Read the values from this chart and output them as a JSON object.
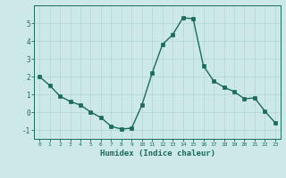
{
  "x": [
    0,
    1,
    2,
    3,
    4,
    5,
    6,
    7,
    8,
    9,
    10,
    11,
    12,
    13,
    14,
    15,
    16,
    17,
    18,
    19,
    20,
    21,
    22,
    23
  ],
  "y": [
    2.0,
    1.5,
    0.9,
    0.6,
    0.4,
    0.0,
    -0.3,
    -0.8,
    -0.95,
    -0.9,
    0.4,
    2.2,
    3.8,
    4.35,
    5.3,
    5.25,
    2.6,
    1.75,
    1.4,
    1.15,
    0.75,
    0.8,
    0.05,
    -0.6
  ],
  "title": "",
  "xlabel": "Humidex (Indice chaleur)",
  "ylabel": "",
  "xlim": [
    -0.5,
    23.5
  ],
  "ylim": [
    -1.5,
    6.0
  ],
  "yticks": [
    -1,
    0,
    1,
    2,
    3,
    4,
    5
  ],
  "xticks": [
    0,
    1,
    2,
    3,
    4,
    5,
    6,
    7,
    8,
    9,
    10,
    11,
    12,
    13,
    14,
    15,
    16,
    17,
    18,
    19,
    20,
    21,
    22,
    23
  ],
  "line_color": "#1a6b5a",
  "marker_color": "#1a6b5a",
  "bg_color": "#cce8e8",
  "grid_color": "#b8d8d8",
  "tick_color": "#1a6b5a",
  "label_color": "#1a6b5a"
}
